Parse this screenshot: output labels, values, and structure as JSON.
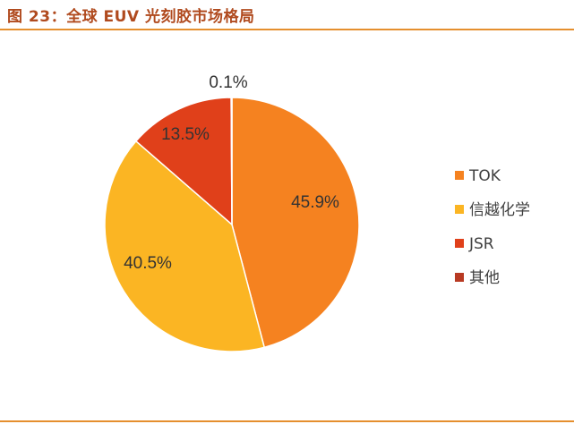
{
  "figure": {
    "title": "图 23：全球 EUV 光刻胶市场格局"
  },
  "chart_data": {
    "type": "pie",
    "categories": [
      "TOK",
      "信越化学",
      "JSR",
      "其他"
    ],
    "values": [
      45.9,
      40.5,
      13.5,
      0.1
    ],
    "labels": [
      "45.9%",
      "40.5%",
      "13.5%",
      "0.1%"
    ],
    "colors": [
      "#f58220",
      "#fbb523",
      "#e0401a",
      "#b83a23"
    ],
    "legend_position": "right",
    "start": "12 o'clock",
    "direction": "clockwise"
  }
}
